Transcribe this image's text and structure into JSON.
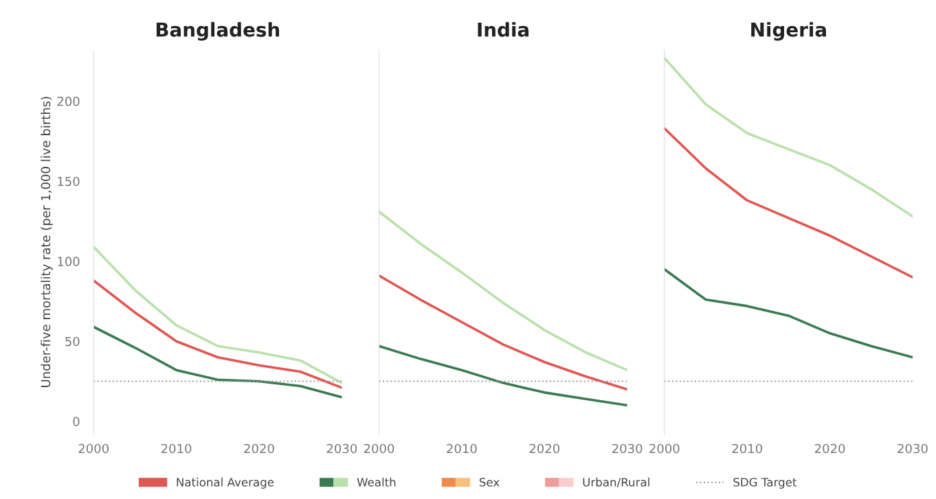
{
  "chart_data": [
    {
      "type": "line",
      "title": "Bangladesh",
      "ylabel": "Under-five mortality rate (per 1,000 live births)",
      "x": [
        2000,
        2005,
        2010,
        2015,
        2020,
        2025,
        2030
      ],
      "xlim": [
        2000,
        2030
      ],
      "xticks": [
        2000,
        2010,
        2020,
        2030
      ],
      "ylim": [
        -8,
        232
      ],
      "yticks": [
        0,
        50,
        100,
        150,
        200
      ],
      "legend": "bottom",
      "series": [
        {
          "name": "National Average",
          "color": "#e05753",
          "values": [
            88,
            68,
            50,
            40,
            35,
            31,
            21
          ]
        },
        {
          "name": "Wealth",
          "color": "#3b7b53",
          "values": [
            59,
            46,
            32,
            26,
            25,
            22,
            15
          ]
        },
        {
          "color": "#b9e1ab",
          "values": [
            109,
            82,
            60,
            47,
            43,
            38,
            24
          ]
        },
        {
          "name": "Sex",
          "color": "#ef8a4c",
          "values": [
            null,
            null,
            null,
            null,
            null,
            null,
            null
          ]
        },
        {
          "color": "#f7c27e",
          "values": [
            null,
            null,
            null,
            null,
            null,
            null,
            null
          ]
        },
        {
          "name": "Urban/Rural",
          "color": "#ef9d9b",
          "values": [
            null,
            null,
            null,
            null,
            null,
            null,
            null
          ]
        },
        {
          "color": "#f9cdcc",
          "values": [
            null,
            null,
            null,
            null,
            null,
            null,
            null
          ]
        }
      ],
      "ref_lines": [
        {
          "axis": "y",
          "value": 25,
          "label": "SDG Target",
          "color": "#999999",
          "line_style": "dotted"
        }
      ]
    },
    {
      "type": "line",
      "title": "India",
      "x": [
        2000,
        2005,
        2010,
        2015,
        2020,
        2025,
        2030
      ],
      "xlim": [
        2000,
        2030
      ],
      "xticks": [
        2000,
        2010,
        2020,
        2030
      ],
      "ylim": [
        -8,
        232
      ],
      "tick_labels": "x",
      "series": [
        {
          "color": "#e05753",
          "values": [
            91,
            76,
            62,
            48,
            37,
            28,
            20
          ]
        },
        {
          "color": "#3b7b53",
          "values": [
            47,
            39,
            32,
            24,
            18,
            14,
            10
          ]
        },
        {
          "color": "#b9e1ab",
          "values": [
            131,
            111,
            93,
            74,
            57,
            43,
            32
          ]
        }
      ],
      "ref_lines": [
        {
          "axis": "y",
          "value": 25,
          "color": "#999999",
          "line_style": "dotted"
        }
      ]
    },
    {
      "type": "line",
      "title": "Nigeria",
      "x": [
        2000,
        2005,
        2010,
        2015,
        2020,
        2025,
        2030
      ],
      "xlim": [
        2000,
        2030
      ],
      "xticks": [
        2000,
        2010,
        2020,
        2030
      ],
      "ylim": [
        -8,
        232
      ],
      "tick_labels": "x",
      "series": [
        {
          "color": "#e05753",
          "values": [
            183,
            158,
            138,
            127,
            116,
            103,
            90
          ]
        },
        {
          "color": "#3b7b53",
          "values": [
            95,
            76,
            72,
            66,
            55,
            47,
            40
          ]
        },
        {
          "color": "#b9e1ab",
          "values": [
            227,
            198,
            180,
            170,
            160,
            145,
            128
          ]
        }
      ],
      "ref_lines": [
        {
          "axis": "y",
          "value": 25,
          "color": "#999999",
          "line_style": "dotted"
        }
      ]
    }
  ]
}
